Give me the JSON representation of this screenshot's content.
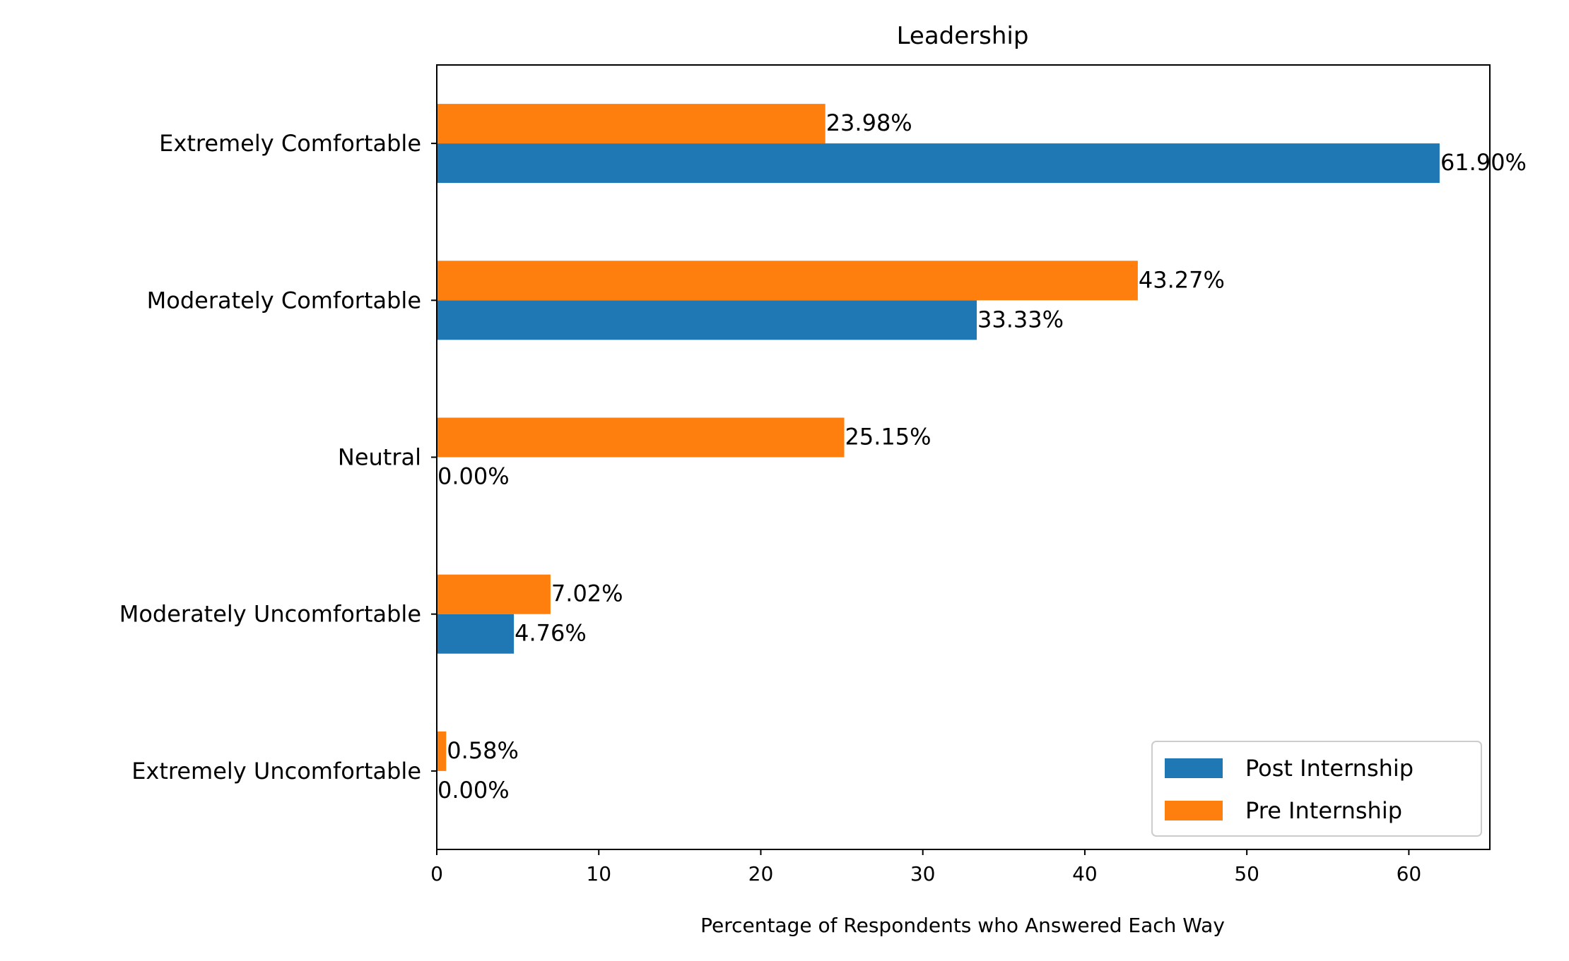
{
  "chart_data": {
    "type": "bar",
    "orientation": "horizontal",
    "title": "Leadership",
    "xlabel": "Percentage of Respondents who Answered Each Way",
    "ylabel": "",
    "xlim": [
      0,
      65
    ],
    "xticks": [
      0,
      10,
      20,
      30,
      40,
      50,
      60
    ],
    "categories": [
      "Extremely Comfortable",
      "Moderately Comfortable",
      "Neutral",
      "Moderately Uncomfortable",
      "Extremely Uncomfortable"
    ],
    "series": [
      {
        "name": "Post Internship",
        "color": "#1f77b4",
        "values": [
          61.9,
          33.33,
          0.0,
          4.76,
          0.0
        ],
        "labels": [
          "61.90%",
          "33.33%",
          "0.00%",
          "4.76%",
          "0.00%"
        ]
      },
      {
        "name": "Pre Internship",
        "color": "#ff7f0e",
        "values": [
          23.98,
          43.27,
          25.15,
          7.02,
          0.58
        ],
        "labels": [
          "23.98%",
          "43.27%",
          "25.15%",
          "7.02%",
          "0.58%"
        ]
      }
    ],
    "legend_position": "lower-right",
    "grid": false
  }
}
